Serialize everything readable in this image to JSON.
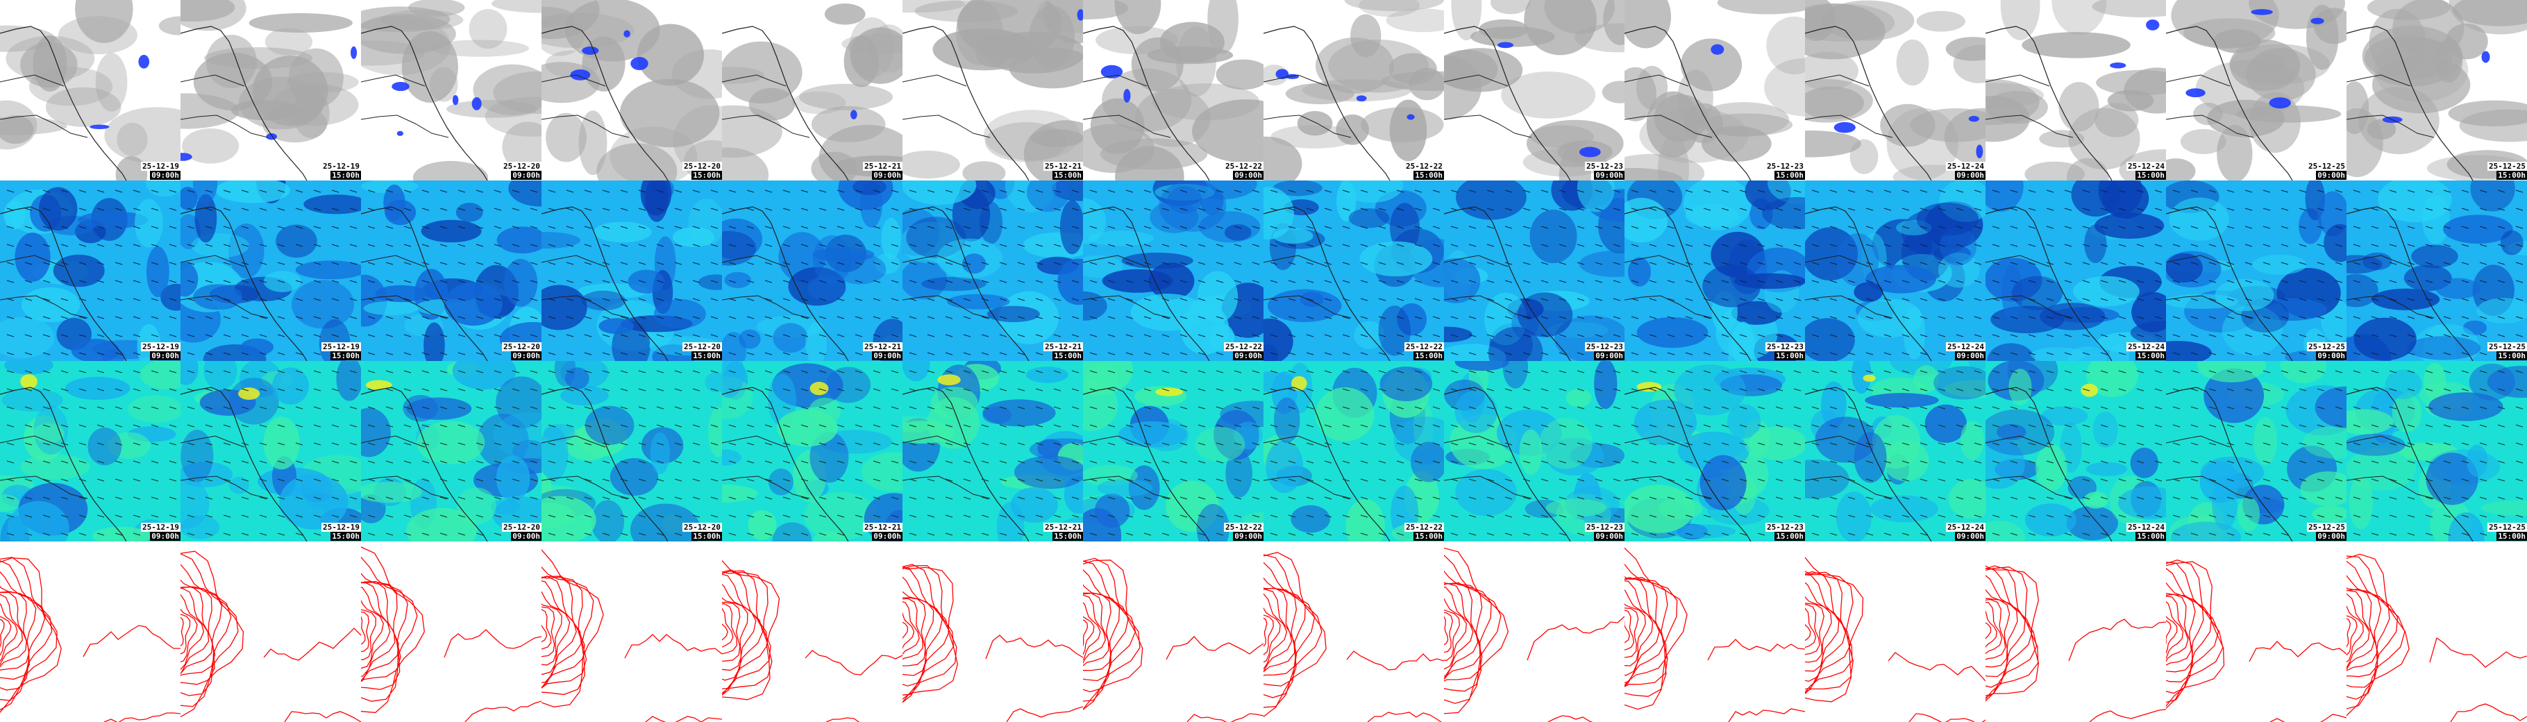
{
  "columns": [
    {
      "date": "25-12-19",
      "hour": "09:00h"
    },
    {
      "date": "25-12-19",
      "hour": "15:00h"
    },
    {
      "date": "25-12-20",
      "hour": "09:00h"
    },
    {
      "date": "25-12-20",
      "hour": "15:00h"
    },
    {
      "date": "25-12-21",
      "hour": "09:00h"
    },
    {
      "date": "25-12-21",
      "hour": "15:00h"
    },
    {
      "date": "25-12-22",
      "hour": "09:00h"
    },
    {
      "date": "25-12-22",
      "hour": "15:00h"
    },
    {
      "date": "25-12-23",
      "hour": "09:00h"
    },
    {
      "date": "25-12-23",
      "hour": "15:00h"
    },
    {
      "date": "25-12-24",
      "hour": "09:00h"
    },
    {
      "date": "25-12-24",
      "hour": "15:00h"
    },
    {
      "date": "25-12-25",
      "hour": "09:00h"
    },
    {
      "date": "25-12-25",
      "hour": "15:00h"
    }
  ],
  "rows": [
    {
      "id": "cloud-precip",
      "type": "clouds",
      "show_labels": true,
      "colors": {
        "bg": "#ffffff",
        "cloud": "#a8a8a8",
        "precip": "#1e3cff",
        "coast": "#222222"
      }
    },
    {
      "id": "wind-low",
      "type": "wind",
      "show_labels": true,
      "colors": {
        "bg": "#1fb4f2",
        "dark": "#1268d8",
        "darker": "#0a3fb5",
        "light": "#29d3f5",
        "arrow": "#102040",
        "coast": "#202020"
      }
    },
    {
      "id": "wind-high",
      "type": "wind",
      "show_labels": true,
      "colors": {
        "bg": "#1ce0d6",
        "dark": "#18b0ee",
        "darker": "#1868d8",
        "light": "#3ef0a8",
        "hot": "#f0f020",
        "arrow": "#103020",
        "coast": "#202020"
      }
    },
    {
      "id": "pressure-contours",
      "type": "contours",
      "show_labels": false,
      "colors": {
        "bg": "#ffffff",
        "line": "#ff0000"
      }
    }
  ]
}
